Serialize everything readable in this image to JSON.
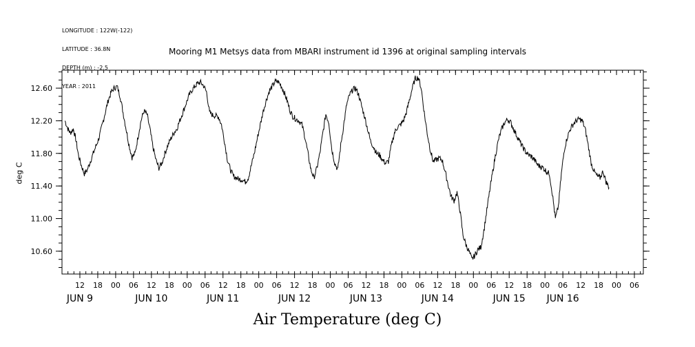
{
  "meta": {
    "longitude": "LONGITUDE : 122W(-122)",
    "latitude": "LATITUDE : 36.8N",
    "depth": "DEPTH (m) : -2.5",
    "year": "YEAR : 2011"
  },
  "chart_data": {
    "type": "line",
    "title": "Mooring M1 Metsys data from MBARI instrument id 1396 at original sampling intervals",
    "xlabel": "Air Temperature (deg C)",
    "ylabel": "deg C",
    "ylim": [
      10.32,
      12.82
    ],
    "yticks": [
      "10.60",
      "11.00",
      "11.40",
      "11.80",
      "12.20",
      "12.60"
    ],
    "ytick_values": [
      10.6,
      11.0,
      11.4,
      11.8,
      12.2,
      12.6
    ],
    "xlim_hours": [
      6,
      201
    ],
    "hour_ticks": [
      {
        "h": 12,
        "label": "12"
      },
      {
        "h": 18,
        "label": "18"
      },
      {
        "h": 24,
        "label": "00"
      },
      {
        "h": 30,
        "label": "06"
      },
      {
        "h": 36,
        "label": "12"
      },
      {
        "h": 42,
        "label": "18"
      },
      {
        "h": 48,
        "label": "00"
      },
      {
        "h": 54,
        "label": "06"
      },
      {
        "h": 60,
        "label": "12"
      },
      {
        "h": 66,
        "label": "18"
      },
      {
        "h": 72,
        "label": "00"
      },
      {
        "h": 78,
        "label": "06"
      },
      {
        "h": 84,
        "label": "12"
      },
      {
        "h": 90,
        "label": "18"
      },
      {
        "h": 96,
        "label": "00"
      },
      {
        "h": 102,
        "label": "06"
      },
      {
        "h": 108,
        "label": "12"
      },
      {
        "h": 114,
        "label": "18"
      },
      {
        "h": 120,
        "label": "00"
      },
      {
        "h": 126,
        "label": "06"
      },
      {
        "h": 132,
        "label": "12"
      },
      {
        "h": 138,
        "label": "18"
      },
      {
        "h": 144,
        "label": "00"
      },
      {
        "h": 150,
        "label": "06"
      },
      {
        "h": 156,
        "label": "12"
      },
      {
        "h": 162,
        "label": "18"
      },
      {
        "h": 168,
        "label": "00"
      },
      {
        "h": 174,
        "label": "06"
      },
      {
        "h": 180,
        "label": "12"
      },
      {
        "h": 186,
        "label": "18"
      },
      {
        "h": 192,
        "label": "00"
      },
      {
        "h": 198,
        "label": "06"
      }
    ],
    "day_labels": [
      {
        "h": 12,
        "label": "JUN  9"
      },
      {
        "h": 36,
        "label": "JUN 10"
      },
      {
        "h": 60,
        "label": "JUN 11"
      },
      {
        "h": 84,
        "label": "JUN 12"
      },
      {
        "h": 108,
        "label": "JUN 13"
      },
      {
        "h": 132,
        "label": "JUN 14"
      },
      {
        "h": 156,
        "label": "JUN 15"
      },
      {
        "h": 174,
        "label": "JUN 16"
      }
    ],
    "series": [
      {
        "color": "#000000",
        "points": [
          [
            7,
            12.2
          ],
          [
            8,
            12.1
          ],
          [
            8.8,
            12.05
          ],
          [
            9.8,
            12.1
          ],
          [
            10.6,
            11.98
          ],
          [
            11.5,
            11.78
          ],
          [
            12.5,
            11.65
          ],
          [
            13.5,
            11.55
          ],
          [
            14.5,
            11.6
          ],
          [
            15.5,
            11.7
          ],
          [
            16.5,
            11.8
          ],
          [
            17.5,
            11.9
          ],
          [
            18.5,
            12.0
          ],
          [
            19.5,
            12.15
          ],
          [
            20.5,
            12.3
          ],
          [
            21.5,
            12.45
          ],
          [
            22.5,
            12.55
          ],
          [
            23.5,
            12.6
          ],
          [
            24.5,
            12.62
          ],
          [
            25.5,
            12.5
          ],
          [
            26.5,
            12.3
          ],
          [
            27.5,
            12.1
          ],
          [
            28.5,
            11.9
          ],
          [
            29.5,
            11.75
          ],
          [
            30.5,
            11.8
          ],
          [
            31.5,
            12.0
          ],
          [
            32.5,
            12.2
          ],
          [
            33.5,
            12.32
          ],
          [
            34.5,
            12.28
          ],
          [
            35.5,
            12.1
          ],
          [
            36.5,
            11.88
          ],
          [
            37.5,
            11.72
          ],
          [
            38.5,
            11.62
          ],
          [
            39.5,
            11.68
          ],
          [
            40.5,
            11.8
          ],
          [
            41.5,
            11.9
          ],
          [
            42.5,
            11.98
          ],
          [
            43.5,
            12.05
          ],
          [
            44.5,
            12.1
          ],
          [
            45.5,
            12.2
          ],
          [
            46.5,
            12.3
          ],
          [
            47.5,
            12.4
          ],
          [
            48.5,
            12.5
          ],
          [
            49.5,
            12.57
          ],
          [
            50.5,
            12.62
          ],
          [
            51.5,
            12.66
          ],
          [
            52.5,
            12.67
          ],
          [
            53.5,
            12.63
          ],
          [
            54.5,
            12.55
          ],
          [
            55.5,
            12.3
          ],
          [
            56.5,
            12.27
          ],
          [
            57.5,
            12.26
          ],
          [
            58.5,
            12.25
          ],
          [
            59.5,
            12.15
          ],
          [
            60.5,
            11.95
          ],
          [
            61.5,
            11.72
          ],
          [
            62.5,
            11.6
          ],
          [
            63.5,
            11.52
          ],
          [
            64.5,
            11.5
          ],
          [
            65.5,
            11.48
          ],
          [
            66.5,
            11.48
          ],
          [
            67.5,
            11.45
          ],
          [
            68.5,
            11.5
          ],
          [
            69.5,
            11.65
          ],
          [
            70.5,
            11.8
          ],
          [
            71.5,
            11.98
          ],
          [
            72.5,
            12.15
          ],
          [
            73.5,
            12.32
          ],
          [
            74.5,
            12.45
          ],
          [
            75.5,
            12.56
          ],
          [
            76.5,
            12.62
          ],
          [
            77.5,
            12.68
          ],
          [
            78.5,
            12.68
          ],
          [
            79.5,
            12.63
          ],
          [
            80.5,
            12.55
          ],
          [
            81.5,
            12.45
          ],
          [
            82.5,
            12.32
          ],
          [
            83.5,
            12.25
          ],
          [
            84.5,
            12.22
          ],
          [
            85.5,
            12.2
          ],
          [
            86.5,
            12.15
          ],
          [
            87.5,
            12.0
          ],
          [
            88.5,
            11.8
          ],
          [
            89.5,
            11.6
          ],
          [
            90.5,
            11.5
          ],
          [
            91.5,
            11.62
          ],
          [
            92.5,
            11.8
          ],
          [
            93.5,
            12.05
          ],
          [
            94.5,
            12.28
          ],
          [
            95.5,
            12.18
          ],
          [
            96.5,
            11.85
          ],
          [
            97.5,
            11.68
          ],
          [
            98.5,
            11.6
          ],
          [
            99.5,
            11.9
          ],
          [
            100.5,
            12.15
          ],
          [
            101.5,
            12.4
          ],
          [
            102.5,
            12.52
          ],
          [
            103.5,
            12.58
          ],
          [
            104.5,
            12.6
          ],
          [
            105.5,
            12.52
          ],
          [
            106.5,
            12.38
          ],
          [
            107.5,
            12.25
          ],
          [
            108.5,
            12.1
          ],
          [
            109.5,
            11.95
          ],
          [
            110.5,
            11.88
          ],
          [
            111.5,
            11.8
          ],
          [
            112.5,
            11.78
          ],
          [
            113.5,
            11.72
          ],
          [
            114.5,
            11.68
          ],
          [
            115.5,
            11.7
          ],
          [
            116.5,
            11.9
          ],
          [
            117.5,
            12.05
          ],
          [
            118.5,
            12.12
          ],
          [
            119.5,
            12.15
          ],
          [
            120.5,
            12.2
          ],
          [
            121.5,
            12.3
          ],
          [
            122.5,
            12.45
          ],
          [
            123.5,
            12.6
          ],
          [
            124.5,
            12.72
          ],
          [
            125.5,
            12.73
          ],
          [
            126.5,
            12.6
          ],
          [
            127.5,
            12.3
          ],
          [
            128.5,
            12.05
          ],
          [
            129.5,
            11.85
          ],
          [
            130.5,
            11.7
          ],
          [
            131.5,
            11.72
          ],
          [
            132.5,
            11.74
          ],
          [
            133.5,
            11.72
          ],
          [
            134.5,
            11.58
          ],
          [
            135.5,
            11.42
          ],
          [
            136.5,
            11.27
          ],
          [
            137.5,
            11.22
          ],
          [
            138.5,
            11.32
          ],
          [
            139.5,
            11.1
          ],
          [
            140.5,
            10.8
          ],
          [
            141.5,
            10.68
          ],
          [
            142.5,
            10.6
          ],
          [
            143.5,
            10.5
          ],
          [
            144.5,
            10.55
          ],
          [
            145.5,
            10.62
          ],
          [
            146.5,
            10.65
          ],
          [
            147.5,
            10.85
          ],
          [
            148.5,
            11.1
          ],
          [
            149.5,
            11.35
          ],
          [
            150.5,
            11.58
          ],
          [
            151.5,
            11.8
          ],
          [
            152.5,
            11.98
          ],
          [
            153.5,
            12.1
          ],
          [
            154.5,
            12.18
          ],
          [
            155.5,
            12.22
          ],
          [
            156.5,
            12.18
          ],
          [
            157.5,
            12.1
          ],
          [
            158.5,
            12.02
          ],
          [
            159.5,
            11.95
          ],
          [
            160.5,
            11.88
          ],
          [
            161.5,
            11.82
          ],
          [
            162.5,
            11.78
          ],
          [
            163.5,
            11.76
          ],
          [
            164.5,
            11.72
          ],
          [
            165.5,
            11.66
          ],
          [
            166.5,
            11.64
          ],
          [
            167.5,
            11.62
          ],
          [
            168.5,
            11.58
          ],
          [
            169.5,
            11.55
          ],
          [
            170.5,
            11.3
          ],
          [
            171.5,
            11.0
          ],
          [
            172.5,
            11.15
          ],
          [
            173.5,
            11.55
          ],
          [
            174.5,
            11.85
          ],
          [
            175.5,
            12.0
          ],
          [
            176.5,
            12.1
          ],
          [
            177.5,
            12.16
          ],
          [
            178.5,
            12.2
          ],
          [
            179.5,
            12.22
          ],
          [
            180.5,
            12.2
          ],
          [
            181.5,
            12.1
          ],
          [
            182.5,
            11.9
          ],
          [
            183.5,
            11.68
          ],
          [
            184.5,
            11.58
          ],
          [
            185.5,
            11.52
          ],
          [
            186.5,
            11.5
          ],
          [
            187.5,
            11.58
          ],
          [
            188.5,
            11.45
          ],
          [
            189.5,
            11.38
          ]
        ]
      }
    ]
  }
}
